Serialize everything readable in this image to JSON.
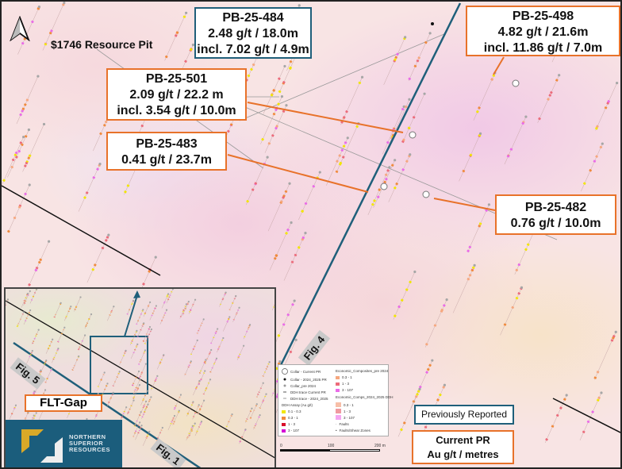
{
  "map": {
    "north_arrow": "north-arrow-icon",
    "pit_label": "$1746 Resource Pit",
    "callouts": [
      {
        "id": "PB-25-484",
        "lines": [
          "PB-25-484",
          "2.48 g/t  / 18.0m",
          "incl. 7.02 g/t / 4.9m"
        ],
        "color": "#1f5f7a"
      },
      {
        "id": "PB-25-498",
        "lines": [
          "PB-25-498",
          "4.82 g/t / 21.6m",
          "incl. 11.86 g/t / 7.0m"
        ],
        "color": "#e8722a"
      },
      {
        "id": "PB-25-501",
        "lines": [
          "PB-25-501",
          "2.09 g/t / 22.2 m",
          "incl. 3.54 g/t / 10.0m"
        ],
        "color": "#e8722a"
      },
      {
        "id": "PB-25-483",
        "lines": [
          "PB-25-483",
          "0.41 g/t / 23.7m"
        ],
        "color": "#e8722a"
      },
      {
        "id": "PB-25-482",
        "lines": [
          "PB-25-482",
          "0.76 g/t / 10.0m"
        ],
        "color": "#e8722a"
      }
    ],
    "fig4_label": "Fig. 4"
  },
  "inset": {
    "fig5_label": "Fig. 5",
    "fig1_label": "Fig. 1",
    "flt_gap": "FLT-Gap",
    "logo_text": [
      "NORTHERN",
      "SUPERIOR",
      "RESOURCES"
    ]
  },
  "legend": {
    "left": [
      {
        "label": "Collar - Current PR",
        "symbol": "circle-large"
      },
      {
        "label": "Collar - 2024_2025 PR",
        "symbol": "dot-black"
      },
      {
        "label": "Collar_pre 2024",
        "symbol": "dot-grey"
      },
      {
        "label": "DDH trace Current PR",
        "symbol": "line"
      },
      {
        "label": "DDH trace - 2024_2025",
        "symbol": "line"
      }
    ],
    "assay_title": "DDH Assay (Au g/t)",
    "assay": [
      {
        "label": "0.1 - 0.3",
        "color": "#f2e600"
      },
      {
        "label": "0.3 - 1",
        "color": "#f08a3c"
      },
      {
        "label": "1 - 3",
        "color": "#d8102a"
      },
      {
        "label": "3 - 107",
        "color": "#d400d4"
      }
    ],
    "comp_pre_title": "Economic_Composites_pre 2024",
    "comp_pre": [
      {
        "label": "0.3 - 1",
        "color": "#f6a77e"
      },
      {
        "label": "1 - 3",
        "color": "#ec6b7b"
      },
      {
        "label": "3 - 107",
        "color": "#ea6ae8"
      }
    ],
    "comp_new_title": "Economic_Comps_2024_2025 DDH",
    "comp_new": [
      {
        "label": "0.3 - 1",
        "color": "#f7bfa8"
      },
      {
        "label": "1 - 3",
        "color": "#ef9aa0"
      },
      {
        "label": "3 - 107",
        "color": "#f4a6f0"
      }
    ],
    "faults": [
      {
        "label": "Faults"
      },
      {
        "label": "Faults/Shear Zones"
      }
    ]
  },
  "scale": {
    "ticks": [
      "0",
      "100",
      "200 m"
    ]
  },
  "key": {
    "previously_reported": "Previously Reported",
    "current_pr": "Current PR",
    "units": "Au g/t / metres"
  }
}
